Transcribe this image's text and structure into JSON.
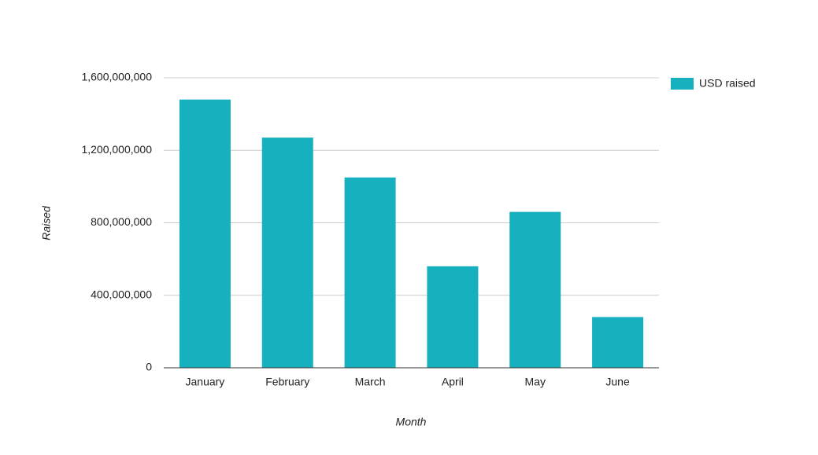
{
  "chart_data": {
    "type": "bar",
    "x_label": "Month",
    "y_label": "Raised",
    "categories": [
      "January",
      "February",
      "March",
      "April",
      "May",
      "June"
    ],
    "series": [
      {
        "name": "USD raised",
        "color": "#17b0bf",
        "values": [
          1480000000,
          1270000000,
          1050000000,
          560000000,
          860000000,
          280000000
        ]
      }
    ],
    "ylim": [
      0,
      1600000000
    ],
    "yticks": [
      0,
      {
        "value": 400000000,
        "label": "400,000,000"
      },
      {
        "value": 800000000,
        "label": "800,000,000"
      },
      {
        "value": 1200000000,
        "label": "1,200,000,000"
      },
      {
        "value": 1600000000,
        "label": "1,600,000,000"
      }
    ],
    "grid": true,
    "legend": "right"
  }
}
